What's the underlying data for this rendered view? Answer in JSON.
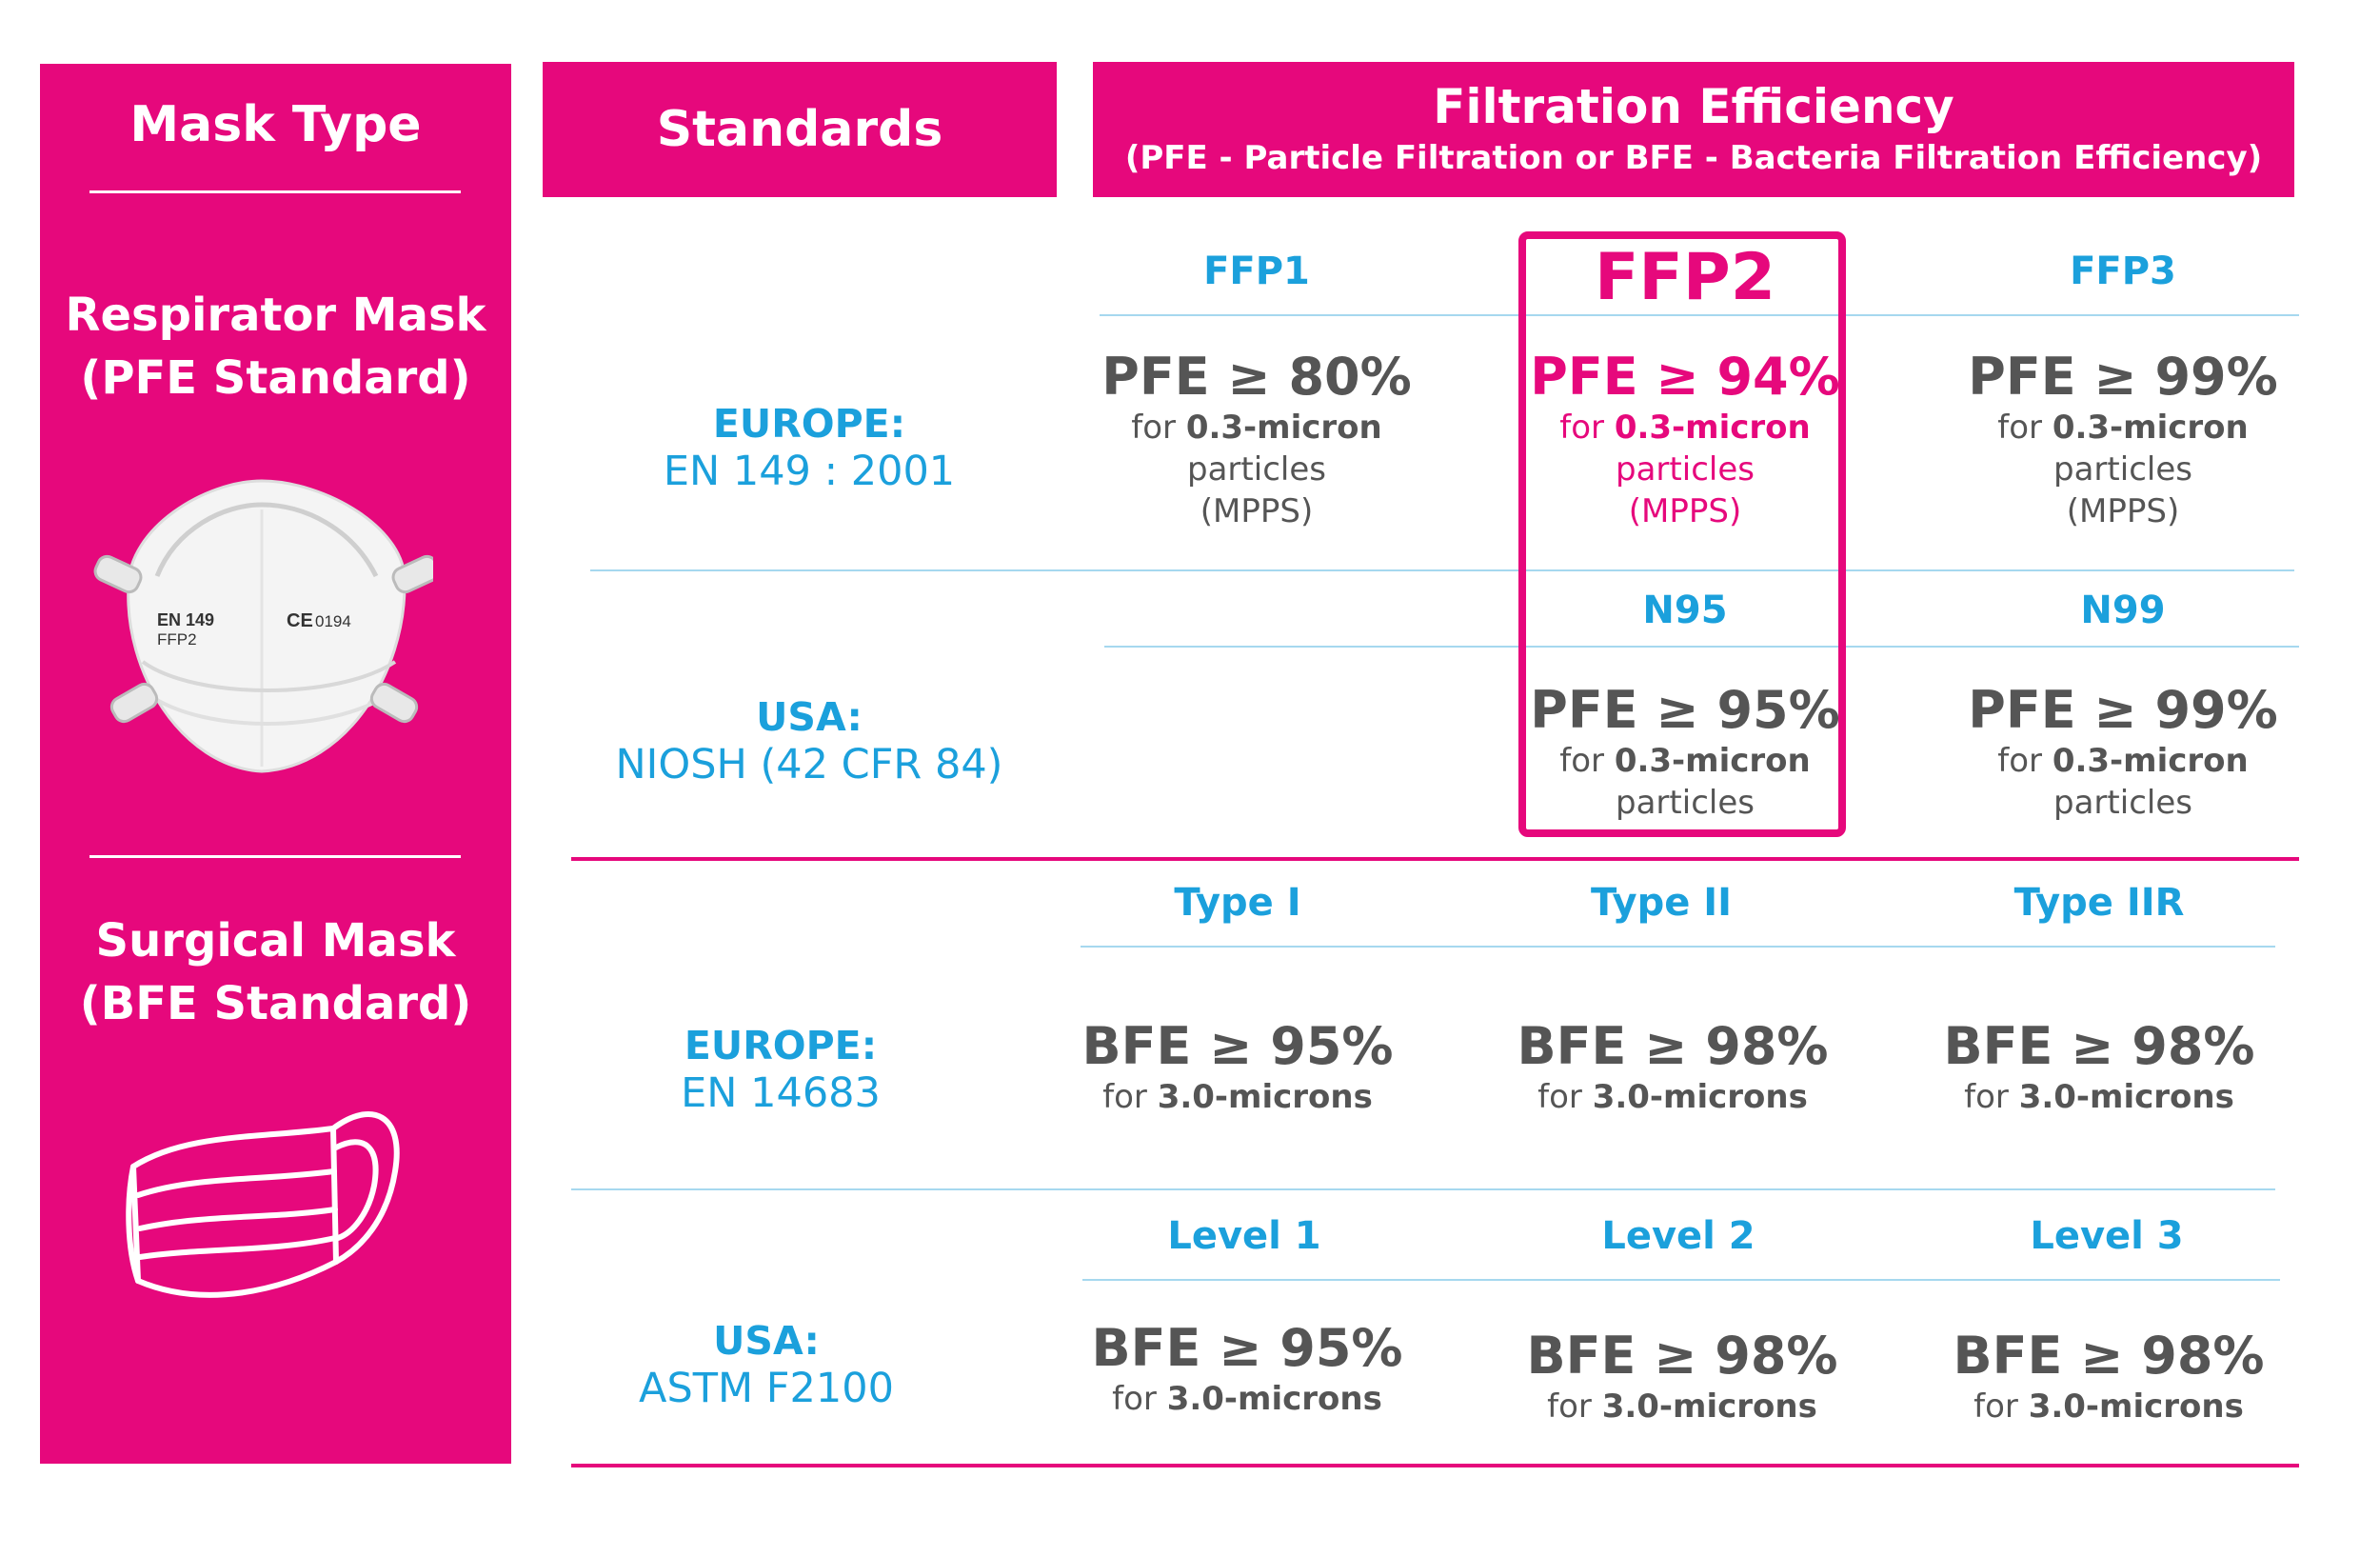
{
  "colors": {
    "accent": "#e6087c",
    "blue": "#1ba0dc",
    "gray": "#555555"
  },
  "sidebar": {
    "header": "Mask Type",
    "respirator": {
      "line1": "Respirator Mask",
      "line2": "(PFE Standard)",
      "icon": "respirator-mask-icon",
      "mask_print": {
        "brand_line1": "EN 149",
        "brand_line2": "FFP2",
        "ce_mark": "CE",
        "ce_number": "0194"
      }
    },
    "surgical": {
      "line1": "Surgical Mask",
      "line2": "(BFE Standard)",
      "icon": "surgical-mask-icon"
    }
  },
  "header": {
    "standards": "Standards",
    "filtration_title": "Filtration Efficiency",
    "filtration_sub": "(PFE - Particle Filtration or BFE - Bacteria Filtration Efficiency)"
  },
  "respirator_section": {
    "europe": {
      "region": "EUROPE:",
      "code": "EN 149 : 2001",
      "columns": [
        "FFP1",
        "FFP2",
        "FFP3"
      ],
      "values": [
        {
          "value": "PFE ≥ 80%",
          "for": "for",
          "size": "0.3-micron",
          "line2": "particles",
          "line3": "(MPPS)"
        },
        {
          "value": "PFE ≥ 94%",
          "for": "for",
          "size": "0.3-micron",
          "line2": "particles",
          "line3": "(MPPS)"
        },
        {
          "value": "PFE ≥ 99%",
          "for": "for",
          "size": "0.3-micron",
          "line2": "particles",
          "line3": "(MPPS)"
        }
      ]
    },
    "usa": {
      "region": "USA:",
      "code": "NIOSH (42 CFR 84)",
      "columns": [
        "N95",
        "N99"
      ],
      "values": [
        {
          "value": "PFE ≥ 95%",
          "for": "for",
          "size": "0.3-micron",
          "line2": "particles"
        },
        {
          "value": "PFE ≥ 99%",
          "for": "for",
          "size": "0.3-micron",
          "line2": "particles"
        }
      ]
    }
  },
  "surgical_section": {
    "europe": {
      "region": "EUROPE:",
      "code": "EN 14683",
      "columns": [
        "Type I",
        "Type II",
        "Type IIR"
      ],
      "values": [
        {
          "value": "BFE ≥ 95%",
          "for": "for",
          "size": "3.0-microns"
        },
        {
          "value": "BFE ≥ 98%",
          "for": "for",
          "size": "3.0-microns"
        },
        {
          "value": "BFE ≥ 98%",
          "for": "for",
          "size": "3.0-microns"
        }
      ]
    },
    "usa": {
      "region": "USA:",
      "code": "ASTM F2100",
      "columns": [
        "Level 1",
        "Level 2",
        "Level 3"
      ],
      "values": [
        {
          "value": "BFE ≥ 95%",
          "for": "for",
          "size": "3.0-microns"
        },
        {
          "value": "BFE ≥ 98%",
          "for": "for",
          "size": "3.0-microns"
        },
        {
          "value": "BFE ≥ 98%",
          "for": "for",
          "size": "3.0-microns"
        }
      ]
    }
  }
}
